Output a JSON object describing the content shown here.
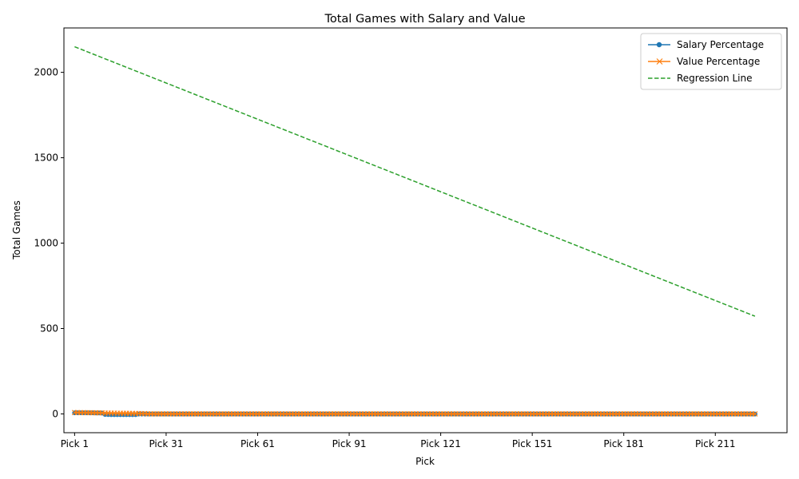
{
  "chart_data": {
    "type": "line",
    "title": "Total Games with Salary and Value",
    "xlabel": "Pick",
    "ylabel": "Total Games",
    "x_tick_labels": [
      "Pick 1",
      "Pick 31",
      "Pick 61",
      "Pick 91",
      "Pick 121",
      "Pick 151",
      "Pick 181",
      "Pick 211"
    ],
    "x_tick_indices": [
      0,
      30,
      60,
      90,
      120,
      150,
      180,
      210
    ],
    "num_picks": 224,
    "y_ticks": [
      0,
      500,
      1000,
      1500,
      2000
    ],
    "ylim": [
      -110,
      2260
    ],
    "xlim": [
      -3.5,
      233.5
    ],
    "grid": false,
    "legend_position": "top-right",
    "series": [
      {
        "name": "Salary Percentage",
        "marker": "circle",
        "color": "#1f77b4",
        "head_values": [
          6,
          6,
          6,
          6,
          6,
          6,
          6,
          5.5,
          5.5,
          5,
          -3,
          -3.5,
          -4,
          -4,
          -4,
          -4,
          -4,
          -4,
          -4.5,
          -4.5,
          -4.5
        ],
        "tail_value": -1
      },
      {
        "name": "Value Percentage",
        "marker": "x",
        "color": "#ff7f0e",
        "head_values": [
          8,
          8,
          7.5,
          7.5,
          7,
          7,
          6.5,
          6.5,
          6,
          6,
          5,
          5,
          4.5,
          4.5,
          4,
          4,
          3.5,
          3.5,
          3,
          3,
          2.5,
          2.5,
          2,
          2
        ],
        "tail_value": 0
      },
      {
        "name": "Regression Line",
        "marker": "none",
        "color": "#2ca02c",
        "dashed": true,
        "start": 2150,
        "end": 572
      }
    ]
  }
}
